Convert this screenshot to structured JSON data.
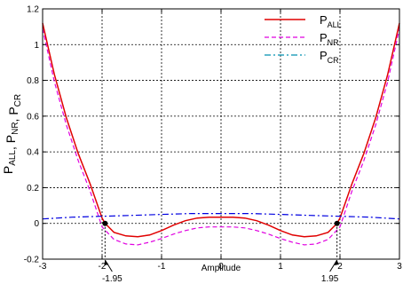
{
  "chart_data": {
    "type": "line",
    "title": "",
    "xlabel": "Amplitude",
    "ylabel": "",
    "ylabel_parts": [
      {
        "text": "P",
        "sub": "ALL"
      },
      {
        "text": ", P",
        "sub": "NR"
      },
      {
        "text": ", P",
        "sub": "CR"
      }
    ],
    "xlim": [
      -3,
      3
    ],
    "ylim": [
      -0.2,
      1.2
    ],
    "x_ticks": [
      -3,
      -2,
      -1,
      0,
      1,
      2,
      3
    ],
    "x_tick_labels": [
      "-3",
      "-2",
      "-1",
      "0",
      "1",
      "2",
      "3"
    ],
    "y_ticks": [
      -0.2,
      0,
      0.2,
      0.4,
      0.6,
      0.8,
      1,
      1.2
    ],
    "y_tick_labels": [
      "-0.2",
      "0",
      "0.2",
      "0.4",
      "0.6",
      "0.8",
      "1",
      "1.2"
    ],
    "grid": true,
    "legend_position": "top-right",
    "colors": {
      "all": "#e00000",
      "nr": "#e000e0",
      "cr": "#0000e0",
      "cr_legend": "#0090b0"
    },
    "series": [
      {
        "key": "all",
        "legend_main": "P",
        "legend_sub": "ALL",
        "style": "solid",
        "x": [
          -3,
          -2.8,
          -2.6,
          -2.4,
          -2.2,
          -2,
          -1.95,
          -1.8,
          -1.6,
          -1.4,
          -1.2,
          -1,
          -0.8,
          -0.6,
          -0.4,
          -0.2,
          0,
          0.2,
          0.4,
          0.6,
          0.8,
          1,
          1.2,
          1.4,
          1.6,
          1.8,
          1.95,
          2,
          2.2,
          2.4,
          2.6,
          2.8,
          3
        ],
        "y": [
          1.12,
          0.83,
          0.59,
          0.39,
          0.22,
          0.03,
          0,
          -0.05,
          -0.07,
          -0.075,
          -0.065,
          -0.04,
          -0.01,
          0.015,
          0.03,
          0.035,
          0.035,
          0.035,
          0.03,
          0.015,
          -0.01,
          -0.04,
          -0.065,
          -0.075,
          -0.07,
          -0.05,
          0,
          0.03,
          0.22,
          0.39,
          0.59,
          0.83,
          1.12
        ]
      },
      {
        "key": "nr",
        "legend_main": "P",
        "legend_sub": "NR",
        "style": "dashed",
        "x": [
          -3,
          -2.8,
          -2.6,
          -2.4,
          -2.2,
          -2,
          -1.8,
          -1.6,
          -1.4,
          -1.2,
          -1,
          -0.8,
          -0.6,
          -0.4,
          -0.2,
          0,
          0.2,
          0.4,
          0.6,
          0.8,
          1,
          1.2,
          1.4,
          1.6,
          1.8,
          2,
          2.2,
          2.4,
          2.6,
          2.8,
          3
        ],
        "y": [
          1.09,
          0.79,
          0.55,
          0.35,
          0.18,
          -0.02,
          -0.09,
          -0.115,
          -0.12,
          -0.105,
          -0.085,
          -0.06,
          -0.04,
          -0.025,
          -0.02,
          -0.02,
          -0.02,
          -0.025,
          -0.04,
          -0.06,
          -0.085,
          -0.105,
          -0.12,
          -0.115,
          -0.09,
          -0.02,
          0.18,
          0.35,
          0.55,
          0.79,
          1.09
        ]
      },
      {
        "key": "cr",
        "legend_main": "P",
        "legend_sub": "CR",
        "style": "dashdot",
        "x": [
          -3,
          -2.5,
          -2,
          -1.5,
          -1,
          -0.5,
          0,
          0.5,
          1,
          1.5,
          2,
          2.5,
          3
        ],
        "y": [
          0.025,
          0.035,
          0.04,
          0.045,
          0.05,
          0.055,
          0.055,
          0.055,
          0.05,
          0.045,
          0.04,
          0.035,
          0.025
        ]
      }
    ],
    "markers": [
      {
        "x": -1.95,
        "y": 0
      },
      {
        "x": 1.95,
        "y": 0
      }
    ],
    "annotations": [
      {
        "text": "-1.95",
        "x": -1.95
      },
      {
        "text": "1.95",
        "x": 1.95
      }
    ]
  }
}
